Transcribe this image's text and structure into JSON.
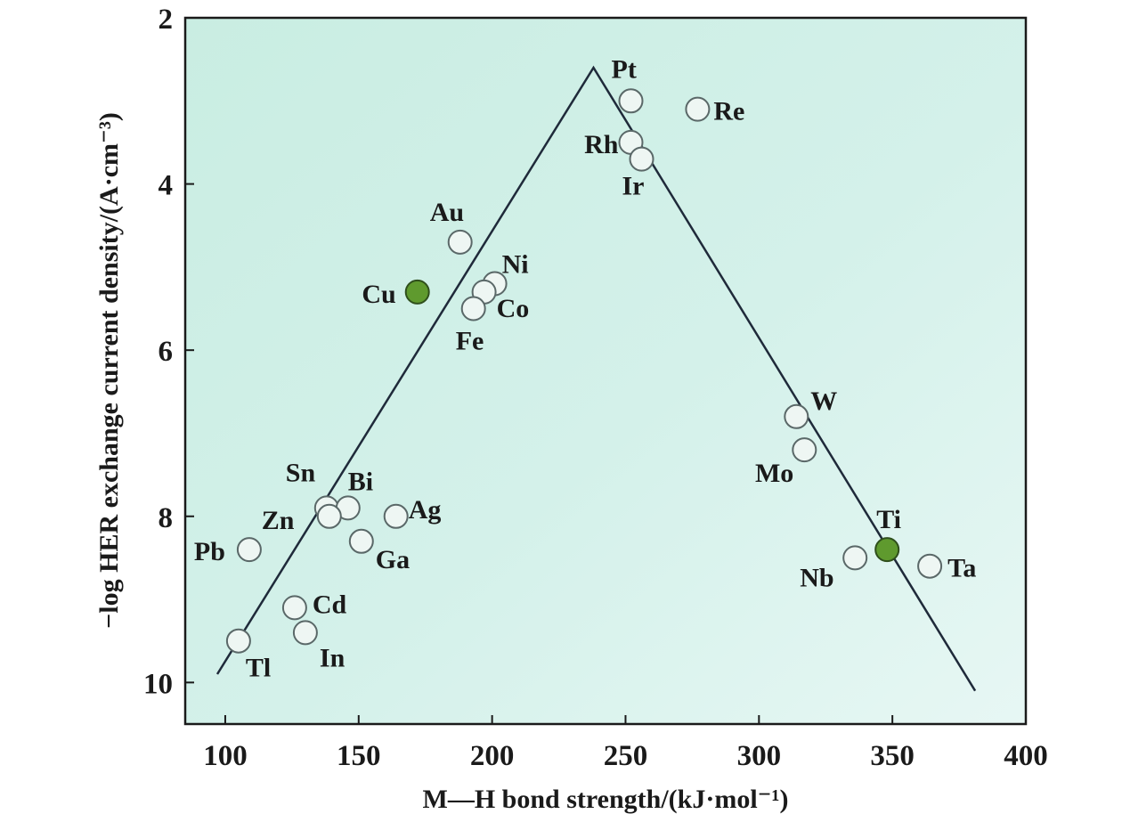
{
  "chart_data": {
    "type": "scatter",
    "xlabel": "M—H bond strength/(kJ·mol⁻¹)",
    "ylabel": "−log HER exchange current density/(A·cm⁻³)",
    "xlim": [
      85,
      400
    ],
    "ylim": [
      10.5,
      2
    ],
    "y_axis_inverted": true,
    "x_ticks": [
      100,
      150,
      200,
      250,
      300,
      350,
      400
    ],
    "y_ticks": [
      2,
      4,
      6,
      8,
      10
    ],
    "grid": false,
    "background": "light cyan-green gradient",
    "volcano_line": [
      {
        "x": 97,
        "y": 9.9
      },
      {
        "x": 238,
        "y": 2.6
      },
      {
        "x": 381,
        "y": 10.1
      }
    ],
    "points": [
      {
        "metal": "Pt",
        "x": 252,
        "y": 3.0,
        "highlight": false
      },
      {
        "metal": "Re",
        "x": 277,
        "y": 3.1,
        "highlight": false
      },
      {
        "metal": "Rh",
        "x": 252,
        "y": 3.5,
        "highlight": false
      },
      {
        "metal": "Ir",
        "x": 256,
        "y": 3.7,
        "highlight": false
      },
      {
        "metal": "Au",
        "x": 188,
        "y": 4.7,
        "highlight": false
      },
      {
        "metal": "Ni",
        "x": 201,
        "y": 5.2,
        "highlight": false
      },
      {
        "metal": "Co",
        "x": 197,
        "y": 5.3,
        "highlight": false
      },
      {
        "metal": "Fe",
        "x": 193,
        "y": 5.5,
        "highlight": false
      },
      {
        "metal": "Cu",
        "x": 172,
        "y": 5.3,
        "highlight": true
      },
      {
        "metal": "W",
        "x": 314,
        "y": 6.8,
        "highlight": false
      },
      {
        "metal": "Mo",
        "x": 317,
        "y": 7.2,
        "highlight": false
      },
      {
        "metal": "Sn",
        "x": 138,
        "y": 7.9,
        "highlight": false
      },
      {
        "metal": "Bi",
        "x": 146,
        "y": 7.9,
        "highlight": false
      },
      {
        "metal": "Zn",
        "x": 139,
        "y": 8.0,
        "highlight": false
      },
      {
        "metal": "Ag",
        "x": 164,
        "y": 8.0,
        "highlight": false
      },
      {
        "metal": "Ga",
        "x": 151,
        "y": 8.3,
        "highlight": false
      },
      {
        "metal": "Pb",
        "x": 109,
        "y": 8.4,
        "highlight": false
      },
      {
        "metal": "Ti",
        "x": 348,
        "y": 8.4,
        "highlight": true
      },
      {
        "metal": "Nb",
        "x": 336,
        "y": 8.5,
        "highlight": false
      },
      {
        "metal": "Ta",
        "x": 364,
        "y": 8.6,
        "highlight": false
      },
      {
        "metal": "Cd",
        "x": 126,
        "y": 9.1,
        "highlight": false
      },
      {
        "metal": "In",
        "x": 130,
        "y": 9.4,
        "highlight": false
      },
      {
        "metal": "Tl",
        "x": 105,
        "y": 9.5,
        "highlight": false
      }
    ],
    "colors": {
      "marker_fill": "#eef6f3",
      "marker_stroke": "#5a6868",
      "highlight_fill": "#5f9a2e",
      "highlight_stroke": "#2f4f1c",
      "line": "#1f2a3a"
    }
  }
}
